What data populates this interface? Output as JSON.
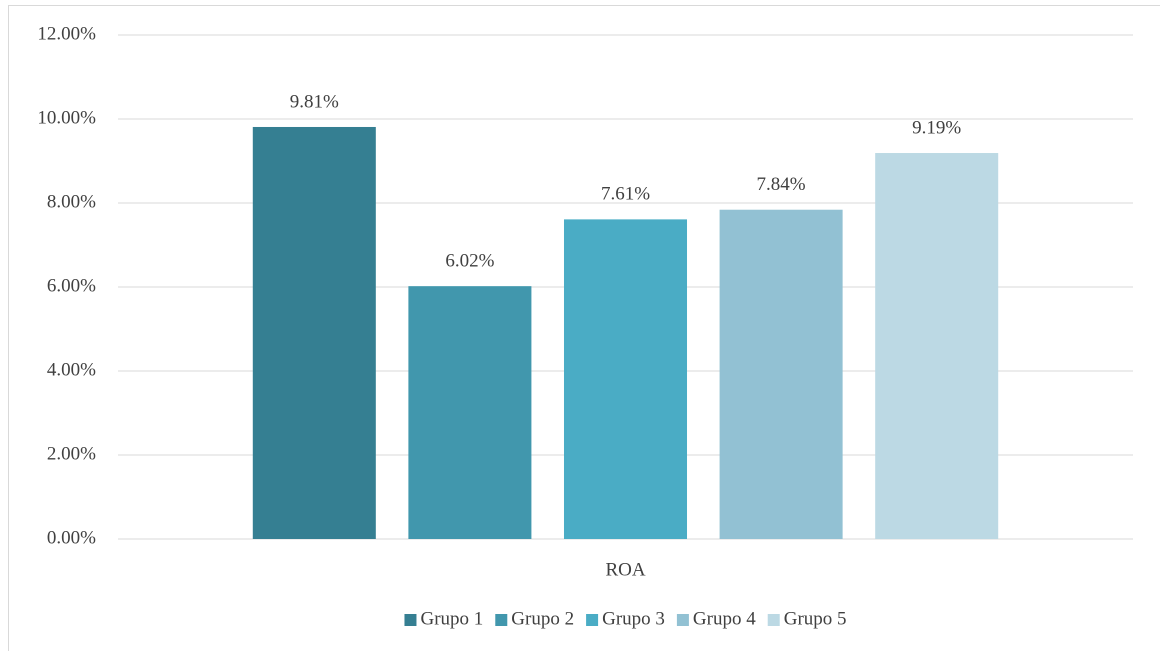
{
  "chart_data": {
    "type": "bar",
    "categories": [
      "ROA"
    ],
    "series": [
      {
        "name": "Grupo 1",
        "color": "#357f92",
        "values": [
          9.81
        ],
        "value_labels": [
          "9.81%"
        ]
      },
      {
        "name": "Grupo 2",
        "color": "#4197ad",
        "values": [
          6.02
        ],
        "value_labels": [
          "6.02%"
        ]
      },
      {
        "name": "Grupo 3",
        "color": "#4aacc5",
        "values": [
          7.61
        ],
        "value_labels": [
          "7.61%"
        ]
      },
      {
        "name": "Grupo 4",
        "color": "#92c1d3",
        "values": [
          7.84
        ],
        "value_labels": [
          "7.84%"
        ]
      },
      {
        "name": "Grupo 5",
        "color": "#bcd9e4",
        "values": [
          9.19
        ],
        "value_labels": [
          "9.19%"
        ]
      }
    ],
    "ylim": [
      0,
      12
    ],
    "yticks": [
      {
        "value": 0,
        "label": "0.00%"
      },
      {
        "value": 2,
        "label": "2.00%"
      },
      {
        "value": 4,
        "label": "4.00%"
      },
      {
        "value": 6,
        "label": "6.00%"
      },
      {
        "value": 8,
        "label": "8.00%"
      },
      {
        "value": 10,
        "label": "10.00%"
      },
      {
        "value": 12,
        "label": "12.00%"
      }
    ],
    "grid": true,
    "legend": "bottom"
  }
}
